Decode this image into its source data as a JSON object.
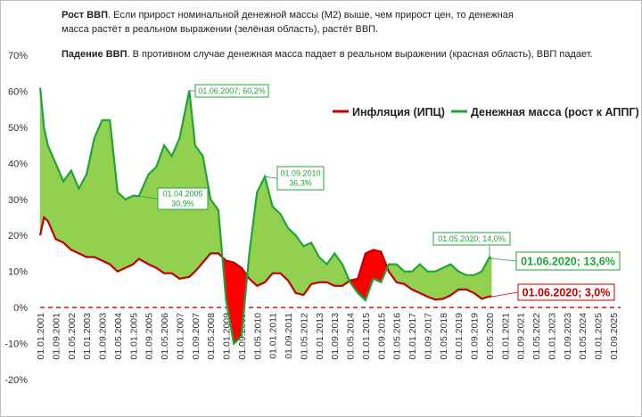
{
  "chart_data": {
    "type": "line",
    "notes": [
      {
        "bold": "Рост ВВП",
        "text": ". Если прирост  номинальной денежной массы (М2) выше, чем прирост цен,  то денежная масса растёт в реальном выражении (зелёная область), растёт ВВП."
      },
      {
        "bold": "Падение ВВП",
        "text": ". В противном случае денежная масса падает в реальном выражении (красная область), ВВП падает."
      }
    ],
    "x": [
      "01.01.2001",
      "01.03.2001",
      "01.05.2001",
      "01.09.2001",
      "01.01.2002",
      "01.05.2002",
      "01.09.2002",
      "01.01.2003",
      "01.05.2003",
      "01.09.2003",
      "01.01.2004",
      "01.05.2004",
      "01.09.2004",
      "01.01.2005",
      "01.04.2005",
      "01.09.2005",
      "01.01.2006",
      "01.05.2006",
      "01.09.2006",
      "01.01.2007",
      "01.06.2007",
      "01.09.2007",
      "01.01.2008",
      "01.05.2008",
      "01.09.2008",
      "01.01.2009",
      "01.05.2009",
      "01.09.2009",
      "01.01.2010",
      "01.05.2010",
      "01.09.2010",
      "01.01.2011",
      "01.05.2011",
      "01.09.2011",
      "01.01.2012",
      "01.05.2012",
      "01.09.2012",
      "01.01.2013",
      "01.05.2013",
      "01.09.2013",
      "01.01.2014",
      "01.05.2014",
      "01.09.2014",
      "01.01.2015",
      "01.05.2015",
      "01.09.2015",
      "01.01.2016",
      "01.05.2016",
      "01.09.2016",
      "01.01.2017",
      "01.05.2017",
      "01.09.2017",
      "01.01.2018",
      "01.05.2018",
      "01.09.2018",
      "01.01.2019",
      "01.05.2019",
      "01.09.2019",
      "01.01.2020",
      "01.05.2020",
      "01.06.2020"
    ],
    "series": [
      {
        "name": "Инфляция (ИПЦ)",
        "color": "#c00000",
        "fill": "#ff0000",
        "values": [
          20,
          25,
          24,
          19,
          18,
          16,
          15,
          14,
          14,
          13,
          12,
          10,
          11,
          12,
          13.5,
          12,
          11,
          9.5,
          9.5,
          8,
          8.5,
          10,
          12.5,
          15,
          15,
          13,
          12.5,
          11,
          8,
          6,
          7,
          9.5,
          9.5,
          7.5,
          4,
          3.5,
          6.5,
          7,
          7,
          6,
          6,
          7.5,
          8,
          15,
          16,
          15.5,
          10,
          7,
          6.5,
          5,
          4,
          3,
          2.2,
          2.4,
          3.4,
          5,
          5,
          4,
          2.4,
          3.1,
          3.0
        ]
      },
      {
        "name": "Денежная масса (рост к АППГ)",
        "color": "#21a33a",
        "fill": "#92d050",
        "values": [
          61,
          50,
          45,
          40,
          35,
          38,
          33,
          37,
          47,
          52,
          52,
          32,
          30,
          31,
          30.9,
          37,
          39,
          45,
          42,
          47,
          60.2,
          45,
          42,
          30,
          27,
          2,
          -10,
          -8,
          15,
          32,
          36.3,
          28,
          26,
          22,
          20,
          17,
          18,
          14,
          12,
          15,
          12,
          7,
          4,
          2,
          8,
          7,
          12,
          12,
          10,
          10,
          12,
          10,
          10,
          11,
          12,
          10,
          9,
          9,
          10,
          14.0,
          13.6
        ]
      }
    ],
    "xticks": [
      "01.01.2001",
      "01.09.2001",
      "01.05.2002",
      "01.01.2003",
      "01.09.2003",
      "01.05.2004",
      "01.01.2005",
      "01.09.2005",
      "01.05.2006",
      "01.01.2007",
      "01.09.2007",
      "01.05.2008",
      "01.01.2009",
      "01.09.2009",
      "01.05.2010",
      "01.01.2011",
      "01.09.2011",
      "01.05.2012",
      "01.01.2013",
      "01.09.2013",
      "01.05.2014",
      "01.01.2015",
      "01.09.2015",
      "01.05.2016",
      "01.01.2017",
      "01.09.2017",
      "01.05.2018",
      "01.01.2019",
      "01.09.2019",
      "01.05.2020",
      "01.01.2021",
      "01.09.2021",
      "01.05.2022",
      "01.01.2023",
      "01.09.2023",
      "01.05.2024",
      "01.01.2025",
      "01.09.2025"
    ],
    "ylim": [
      -20,
      70
    ],
    "yticks": [
      {
        "value": -20,
        "label": "-20%"
      },
      {
        "value": -10,
        "label": "-10%"
      },
      {
        "value": 0,
        "label": "0%"
      },
      {
        "value": 10,
        "label": "10%"
      },
      {
        "value": 20,
        "label": "20%"
      },
      {
        "value": 30,
        "label": "30%"
      },
      {
        "value": 40,
        "label": "40%"
      },
      {
        "value": 50,
        "label": "50%"
      },
      {
        "value": 60,
        "label": "60%"
      },
      {
        "value": 70,
        "label": "70%"
      }
    ],
    "legend": "upper right",
    "annotations": [
      {
        "lines": [
          "01.06.2007; 60,2%"
        ]
      },
      {
        "lines": [
          "01.04.2005",
          "30,9%"
        ]
      },
      {
        "lines": [
          "01.09.2010",
          "36,3%"
        ]
      },
      {
        "lines": [
          "01.05.2020; 14,0%"
        ]
      },
      {
        "lines": [
          "01.06.2020; 13,6%"
        ]
      },
      {
        "lines": [
          "01.06.2020; 3,0%"
        ]
      }
    ]
  }
}
